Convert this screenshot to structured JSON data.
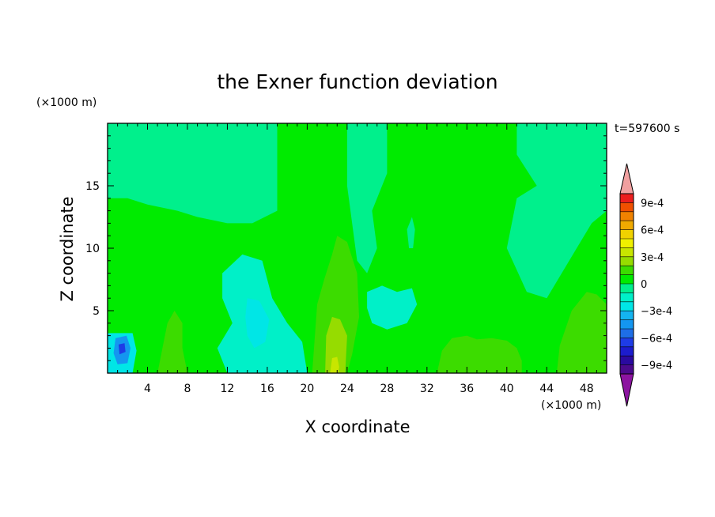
{
  "chart_data": {
    "type": "heatmap",
    "title": "the Exner function deviation",
    "time_label": "t=597600 s",
    "xlabel": "X coordinate",
    "ylabel": "Z coordinate",
    "x_unit": "(×1000 m)",
    "y_unit": "(×1000 m)",
    "xlim": [
      0,
      50
    ],
    "ylim": [
      0,
      20
    ],
    "x_ticks": [
      {
        "value": 4,
        "label": "4"
      },
      {
        "value": 8,
        "label": "8"
      },
      {
        "value": 12,
        "label": "12"
      },
      {
        "value": 16,
        "label": "16"
      },
      {
        "value": 20,
        "label": "20"
      },
      {
        "value": 24,
        "label": "24"
      },
      {
        "value": 28,
        "label": "28"
      },
      {
        "value": 32,
        "label": "32"
      },
      {
        "value": 36,
        "label": "36"
      },
      {
        "value": 40,
        "label": "40"
      },
      {
        "value": 44,
        "label": "44"
      },
      {
        "value": 48,
        "label": "48"
      }
    ],
    "y_ticks": [
      {
        "value": 5,
        "label": "5"
      },
      {
        "value": 10,
        "label": "10"
      },
      {
        "value": 15,
        "label": "15"
      }
    ],
    "colorbar": {
      "levels": [
        -0.001,
        -0.0009,
        -0.0008,
        -0.0007,
        -0.0006,
        -0.0005,
        -0.0004,
        -0.0003,
        -0.0002,
        -0.0001,
        0,
        0.0001,
        0.0002,
        0.0003,
        0.0004,
        0.0005,
        0.0006,
        0.0007,
        0.0008,
        0.0009,
        0.001
      ],
      "colors": [
        "#4b0a8c",
        "#2a0aa0",
        "#1c1ccd",
        "#1e3ce6",
        "#1e6ee6",
        "#1496f0",
        "#14b4f0",
        "#00e6e6",
        "#00f0c8",
        "#00f08c",
        "#00eb00",
        "#3cdc00",
        "#96dc00",
        "#c8e600",
        "#f0f000",
        "#f0d200",
        "#f0aa00",
        "#f08200",
        "#f05000",
        "#eb1e1e"
      ],
      "under_color": "#8c14a0",
      "over_color": "#f0a0a0",
      "tick_labels": [
        {
          "value": 0.0009,
          "label": "9e-4"
        },
        {
          "value": 0.0006,
          "label": "6e-4"
        },
        {
          "value": 0.0003,
          "label": "3e-4"
        },
        {
          "value": 0,
          "label": "0"
        },
        {
          "value": -0.0003,
          "label": "−3e-4"
        },
        {
          "value": -0.0006,
          "label": "−6e-4"
        },
        {
          "value": -0.0009,
          "label": "−9e-4"
        }
      ]
    },
    "background_value": 5e-05,
    "regions": [
      {
        "value": -5e-05,
        "points": [
          [
            0,
            20
          ],
          [
            17,
            20
          ],
          [
            17,
            13
          ],
          [
            14.5,
            12
          ],
          [
            12,
            12
          ],
          [
            9,
            12.5
          ],
          [
            7,
            13
          ],
          [
            4,
            13.5
          ],
          [
            2,
            14
          ],
          [
            0,
            14
          ]
        ]
      },
      {
        "value": -5e-05,
        "points": [
          [
            24,
            20
          ],
          [
            28,
            20
          ],
          [
            28,
            16
          ],
          [
            26.5,
            13
          ],
          [
            27,
            10
          ],
          [
            26,
            8
          ],
          [
            25,
            9
          ],
          [
            24.5,
            12
          ],
          [
            24,
            15
          ]
        ]
      },
      {
        "value": -5e-05,
        "points": [
          [
            41,
            20
          ],
          [
            50,
            20
          ],
          [
            50,
            13
          ],
          [
            48.5,
            12
          ],
          [
            47,
            10
          ],
          [
            45.5,
            8
          ],
          [
            44,
            6
          ],
          [
            42,
            6.5
          ],
          [
            40,
            10
          ],
          [
            41,
            14
          ],
          [
            43,
            15
          ],
          [
            41,
            17.5
          ]
        ]
      },
      {
        "value": -5e-05,
        "points": [
          [
            30,
            11.5
          ],
          [
            30.5,
            12.5
          ],
          [
            30.8,
            11.5
          ],
          [
            30.6,
            10
          ],
          [
            30.2,
            10
          ]
        ]
      },
      {
        "value": -0.00015,
        "points": [
          [
            11.5,
            8
          ],
          [
            13.5,
            9.5
          ],
          [
            15.5,
            9
          ],
          [
            16.5,
            6
          ],
          [
            18,
            4
          ],
          [
            19.5,
            2.5
          ],
          [
            20,
            0
          ],
          [
            12,
            0
          ],
          [
            11,
            2
          ],
          [
            12.5,
            4
          ],
          [
            11.5,
            6
          ]
        ]
      },
      {
        "value": -0.00015,
        "points": [
          [
            26,
            6.5
          ],
          [
            27.5,
            7
          ],
          [
            29,
            6.5
          ],
          [
            30.5,
            6.8
          ],
          [
            31,
            5.5
          ],
          [
            30,
            4
          ],
          [
            28,
            3.5
          ],
          [
            26.5,
            4
          ],
          [
            26,
            5.2
          ]
        ]
      },
      {
        "value": -0.00025,
        "points": [
          [
            14,
            6
          ],
          [
            15.2,
            5.8
          ],
          [
            16.2,
            4.3
          ],
          [
            15.8,
            2.5
          ],
          [
            14.7,
            2
          ],
          [
            14,
            3
          ],
          [
            13.8,
            4.5
          ]
        ]
      },
      {
        "value": -0.00025,
        "points": [
          [
            0,
            3.2
          ],
          [
            2.5,
            3.2
          ],
          [
            2.9,
            1.8
          ],
          [
            2.5,
            0
          ],
          [
            0,
            0
          ]
        ]
      },
      {
        "value": -0.00045,
        "points": [
          [
            0.8,
            2.8
          ],
          [
            1.9,
            3
          ],
          [
            2.3,
            2
          ],
          [
            2,
            0.8
          ],
          [
            1,
            0.7
          ],
          [
            0.6,
            1.6
          ]
        ]
      },
      {
        "value": -0.00065,
        "points": [
          [
            1.1,
            2.3
          ],
          [
            1.7,
            2.4
          ],
          [
            1.8,
            1.7
          ],
          [
            1.2,
            1.5
          ]
        ]
      },
      {
        "value": 0.00015,
        "points": [
          [
            20.5,
            0
          ],
          [
            21,
            5.5
          ],
          [
            21.7,
            7.5
          ],
          [
            22.5,
            9.5
          ],
          [
            23,
            11
          ],
          [
            24,
            10.5
          ],
          [
            25,
            8
          ],
          [
            25.2,
            4.5
          ],
          [
            24.5,
            1.5
          ],
          [
            24,
            0
          ]
        ]
      },
      {
        "value": 0.00015,
        "points": [
          [
            5,
            0
          ],
          [
            6,
            4
          ],
          [
            6.7,
            5
          ],
          [
            7.5,
            4
          ],
          [
            7.5,
            2
          ],
          [
            8,
            0
          ]
        ]
      },
      {
        "value": 0.00015,
        "points": [
          [
            33,
            0
          ],
          [
            33.5,
            1.8
          ],
          [
            34.5,
            2.8
          ],
          [
            36,
            3
          ],
          [
            37,
            2.7
          ],
          [
            38.5,
            2.8
          ],
          [
            40,
            2.6
          ],
          [
            41,
            2
          ],
          [
            41.5,
            1
          ],
          [
            41.5,
            0
          ]
        ]
      },
      {
        "value": 0.00015,
        "points": [
          [
            45,
            0
          ],
          [
            45.3,
            2.2
          ],
          [
            46.5,
            5
          ],
          [
            48,
            6.5
          ],
          [
            49,
            6.3
          ],
          [
            50,
            5.5
          ],
          [
            50,
            0
          ]
        ]
      },
      {
        "value": 0.00025,
        "points": [
          [
            21.8,
            0
          ],
          [
            21.9,
            3
          ],
          [
            22.5,
            4.5
          ],
          [
            23.3,
            4.3
          ],
          [
            24,
            3
          ],
          [
            23.8,
            0
          ]
        ]
      },
      {
        "value": 0.00035,
        "points": [
          [
            22.3,
            0
          ],
          [
            22.5,
            1.2
          ],
          [
            23,
            1.3
          ],
          [
            23.2,
            0.5
          ],
          [
            23.1,
            0
          ]
        ]
      }
    ]
  }
}
